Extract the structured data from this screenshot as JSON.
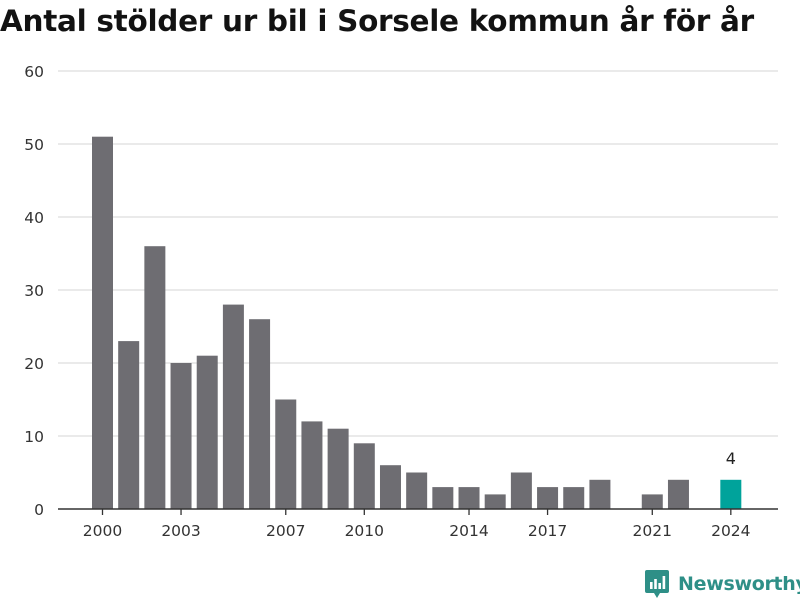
{
  "title": "Antal stölder ur bil i Sorsele kommun år för år",
  "brand": {
    "name": "Newsworthy",
    "color": "#2e8f87"
  },
  "chart_data": {
    "type": "bar",
    "title": "Antal stölder ur bil i Sorsele kommun år för år",
    "x": [
      2000,
      2001,
      2002,
      2003,
      2004,
      2005,
      2006,
      2007,
      2008,
      2009,
      2010,
      2011,
      2012,
      2013,
      2014,
      2015,
      2016,
      2017,
      2018,
      2019,
      2020,
      2021,
      2022,
      2023,
      2024
    ],
    "values": [
      51,
      23,
      36,
      20,
      21,
      28,
      26,
      15,
      12,
      11,
      9,
      6,
      5,
      3,
      3,
      2,
      5,
      3,
      3,
      4,
      null,
      2,
      4,
      null,
      4
    ],
    "x_tick_labels": [
      2000,
      2003,
      2007,
      2010,
      2014,
      2017,
      2021,
      2024
    ],
    "y_ticks": [
      0,
      10,
      20,
      30,
      40,
      50,
      60
    ],
    "ylim": [
      0,
      60
    ],
    "highlight": {
      "x": 2024,
      "label": "4"
    },
    "colors": {
      "bar": "#6e6d72",
      "highlight": "#00a39b",
      "grid": "#dddddd",
      "axis": "#333333",
      "tick_label": "#333333"
    },
    "grid": true
  }
}
